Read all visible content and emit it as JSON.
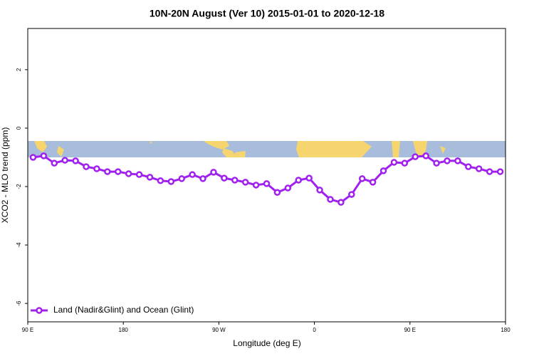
{
  "chart_data": {
    "type": "line",
    "title": "10N-20N August (Ver 10)   2015-01-01 to 2020-12-18",
    "x_label": "Longitude (deg E)",
    "y_label": "XCO2 - MLO trend (ppm)",
    "x": [
      95,
      105,
      115,
      125,
      135,
      145,
      155,
      165,
      175,
      185,
      195,
      205,
      215,
      225,
      235,
      245,
      255,
      265,
      275,
      285,
      295,
      305,
      315,
      325,
      335,
      345,
      355,
      365,
      375,
      385,
      395,
      405,
      415,
      425,
      435,
      445,
      455,
      465,
      475,
      485,
      495,
      505,
      515,
      525,
      535
    ],
    "series": [
      {
        "name": "Land (Nadir&Glint) and Ocean (Glint)",
        "color": "#a020f0",
        "values": [
          -1.0,
          -0.95,
          -1.2,
          -1.1,
          -1.12,
          -1.32,
          -1.39,
          -1.49,
          -1.49,
          -1.56,
          -1.59,
          -1.68,
          -1.8,
          -1.83,
          -1.73,
          -1.59,
          -1.73,
          -1.51,
          -1.71,
          -1.78,
          -1.85,
          -1.95,
          -1.9,
          -2.2,
          -2.05,
          -1.78,
          -1.71,
          -2.12,
          -2.44,
          -2.54,
          -2.27,
          -1.73,
          -1.85,
          -1.46,
          -1.17,
          -1.2,
          -0.98,
          -0.95,
          -1.2,
          -1.12,
          -1.12,
          -1.32,
          -1.39,
          -1.49,
          -1.49
        ]
      }
    ],
    "xlim": [
      90,
      540
    ],
    "xticks": [
      {
        "value": 90,
        "label": "90 E"
      },
      180,
      {
        "value": 270,
        "label": "90 W"
      },
      {
        "value": 360,
        "label": "0"
      },
      {
        "value": 450,
        "label": "90 E"
      },
      {
        "value": 540,
        "label": "180"
      }
    ],
    "ylim": [
      -6.63,
      3.41
    ],
    "yticks": [
      -6,
      -4,
      -2,
      0,
      2
    ],
    "legend": "bottom-left"
  }
}
